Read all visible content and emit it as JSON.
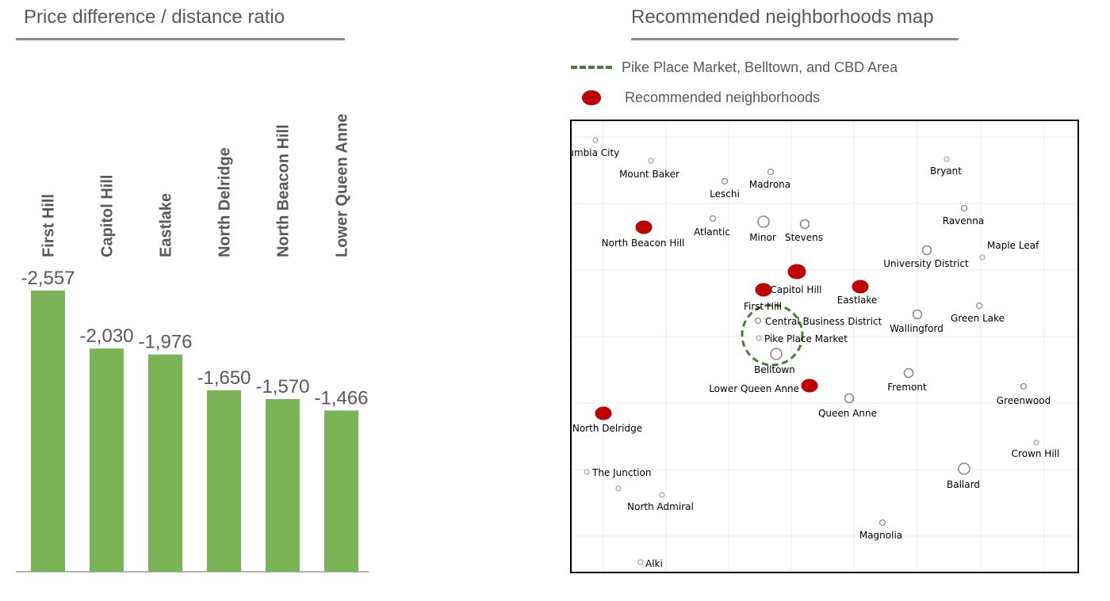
{
  "left_panel": {
    "title": "Price difference / distance ratio"
  },
  "right_panel": {
    "title": "Recommended neighborhoods map",
    "legend": [
      {
        "label": "Pike Place Market, Belltown, and CBD Area",
        "symbol": "dashed-circle-icon",
        "color": "#4a7a3d"
      },
      {
        "label": "Recommended neighborhoods",
        "symbol": "red-dot-icon",
        "color": "#c00000"
      }
    ]
  },
  "chart_data": [
    {
      "type": "bar",
      "title": "Price difference / distance ratio",
      "categories": [
        "First Hill",
        "Capitol Hill",
        "Eastlake",
        "North Delridge",
        "North Beacon Hill",
        "Lower Queen Anne"
      ],
      "values": [
        -2557,
        -2030,
        -1976,
        -1650,
        -1570,
        -1466
      ],
      "value_labels": [
        "-2,557",
        "-2,030",
        "-1,976",
        "-1,650",
        "-1,570",
        "-1,466"
      ],
      "bar_color": "#7ab356",
      "label_color": "#595959",
      "ylim": [
        0,
        -2557
      ],
      "bars_drawn_by_magnitude": true,
      "category_labels_rotated": true,
      "grid": false
    },
    {
      "type": "scatter",
      "title": "Recommended neighborhoods map",
      "neighborhoods": [
        {
          "name": "Columbia City",
          "recommended": false,
          "size": 1,
          "display": "lumbia City"
        },
        {
          "name": "Mount Baker",
          "recommended": false,
          "size": 1
        },
        {
          "name": "Leschi",
          "recommended": false,
          "size": 2
        },
        {
          "name": "Madrona",
          "recommended": false,
          "size": 2
        },
        {
          "name": "Bryant",
          "recommended": false,
          "size": 1
        },
        {
          "name": "Ravenna",
          "recommended": false,
          "size": 2
        },
        {
          "name": "North Beacon Hill",
          "recommended": true,
          "size": 3
        },
        {
          "name": "Atlantic",
          "recommended": false,
          "size": 2
        },
        {
          "name": "Minor",
          "recommended": false,
          "size": 4
        },
        {
          "name": "Stevens",
          "recommended": false,
          "size": 3
        },
        {
          "name": "Maple Leaf",
          "recommended": false,
          "size": 1
        },
        {
          "name": "University District",
          "recommended": false,
          "size": 3
        },
        {
          "name": "Capitol Hill",
          "recommended": true,
          "size": 4
        },
        {
          "name": "First Hill",
          "recommended": true,
          "size": 3
        },
        {
          "name": "Eastlake",
          "recommended": true,
          "size": 3
        },
        {
          "name": "Central Business District",
          "recommended": false,
          "size": 2
        },
        {
          "name": "Pike Place Market",
          "recommended": false,
          "size": 1
        },
        {
          "name": "Belltown",
          "recommended": false,
          "size": 4
        },
        {
          "name": "Wallingford",
          "recommended": false,
          "size": 3
        },
        {
          "name": "Green Lake",
          "recommended": false,
          "size": 2
        },
        {
          "name": "Fremont",
          "recommended": false,
          "size": 3
        },
        {
          "name": "Lower Queen Anne",
          "recommended": true,
          "size": 3
        },
        {
          "name": "Queen Anne",
          "recommended": false,
          "size": 3
        },
        {
          "name": "Greenwood",
          "recommended": false,
          "size": 2
        },
        {
          "name": "North Delridge",
          "recommended": true,
          "size": 3
        },
        {
          "name": "Crown Hill",
          "recommended": false,
          "size": 1
        },
        {
          "name": "The Junction",
          "recommended": false,
          "size": 1
        },
        {
          "name": "Ballard",
          "recommended": false,
          "size": 4
        },
        {
          "name": "North Admiral",
          "recommended": false,
          "size": 1
        },
        {
          "name": "Magnolia",
          "recommended": false,
          "size": 2
        },
        {
          "name": "Alki",
          "recommended": false,
          "size": 1
        },
        {
          "name": "",
          "recommended": false,
          "size": 1
        }
      ],
      "unlabeled_points": 1,
      "highlight_area": "Pike Place Market, Belltown, and CBD Area",
      "recommended_color": "#c00000",
      "other_marker": "hollow-circle",
      "grid": true
    }
  ]
}
